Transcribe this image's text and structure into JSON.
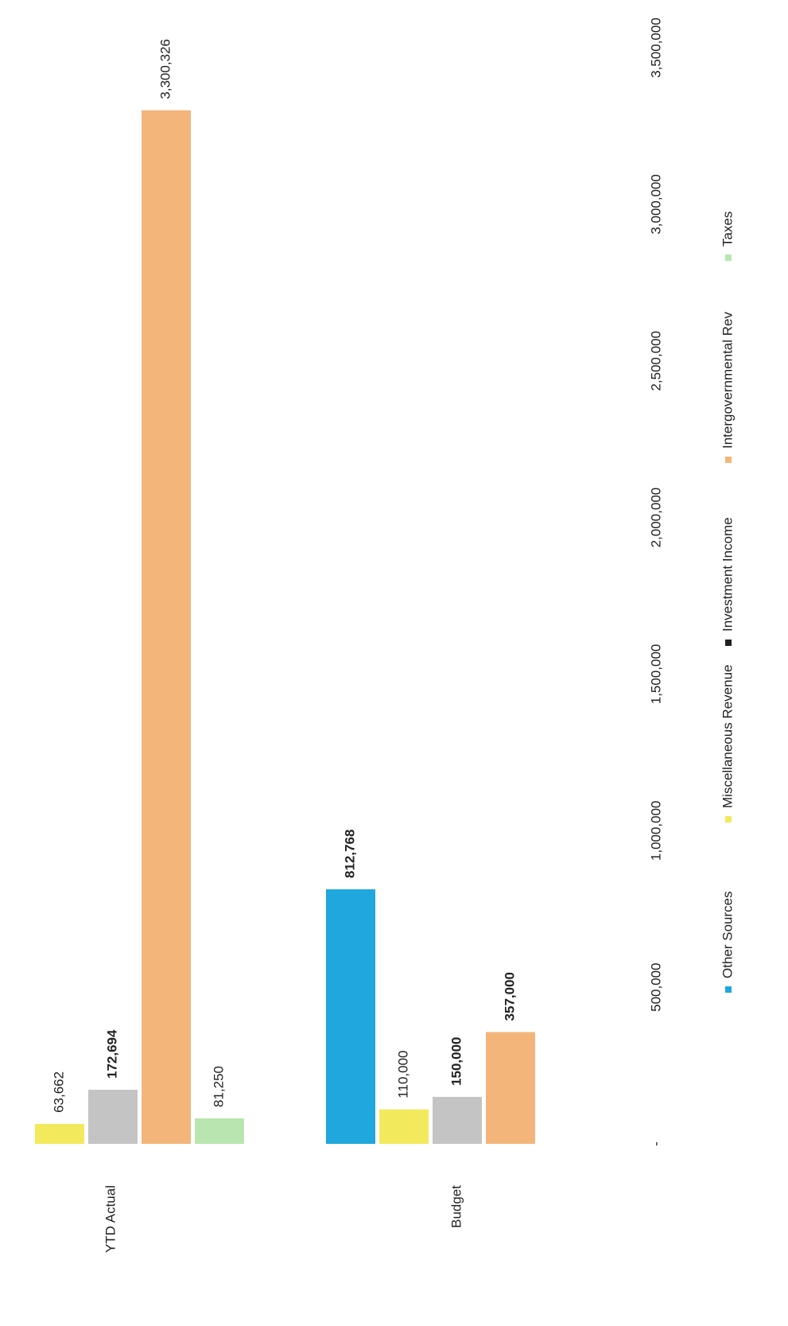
{
  "chart_data": {
    "type": "bar",
    "orientation": "vertical, page rotated 90 degrees clockwise",
    "title": "",
    "xlabel": "",
    "ylabel": "",
    "categories": [
      "YTD Actual",
      "Budget"
    ],
    "ylim": [
      0,
      3500000
    ],
    "y_ticks": [
      {
        "value": 0,
        "label": "-"
      },
      {
        "value": 500000,
        "label": "500,000"
      },
      {
        "value": 1000000,
        "label": "1,000,000"
      },
      {
        "value": 1500000,
        "label": "1,500,000"
      },
      {
        "value": 2000000,
        "label": "2,000,000"
      },
      {
        "value": 2500000,
        "label": "2,500,000"
      },
      {
        "value": 3000000,
        "label": "3,000,000"
      },
      {
        "value": 3500000,
        "label": "3,500,000"
      }
    ],
    "grid": false,
    "legend_position": "bottom",
    "series": [
      {
        "name": "Other Sources",
        "color": "#1fa7de",
        "values": [
          0,
          812768
        ],
        "labels": [
          null,
          "812,768"
        ],
        "bold": true
      },
      {
        "name": "Miscellaneous Revenue",
        "color": "#f2ea5c",
        "values": [
          63662,
          110000
        ],
        "labels": [
          "63,662",
          "110,000"
        ],
        "bold": false
      },
      {
        "name": "Investment Income",
        "color": "#c4c4c4",
        "legend_color": "#1f1f1f",
        "values": [
          172694,
          150000
        ],
        "labels": [
          "172,694",
          "150,000"
        ],
        "bold": true
      },
      {
        "name": "Intergovernmental Rev",
        "color": "#f4b57b",
        "values": [
          3300326,
          357000
        ],
        "labels": [
          "3,300,326",
          "357,000"
        ],
        "bold": false,
        "bold_per_point": [
          false,
          true
        ]
      },
      {
        "name": "Taxes",
        "color": "#b9e6b0",
        "values": [
          81250,
          0
        ],
        "labels": [
          "81,250",
          null
        ],
        "bold": false
      }
    ]
  }
}
